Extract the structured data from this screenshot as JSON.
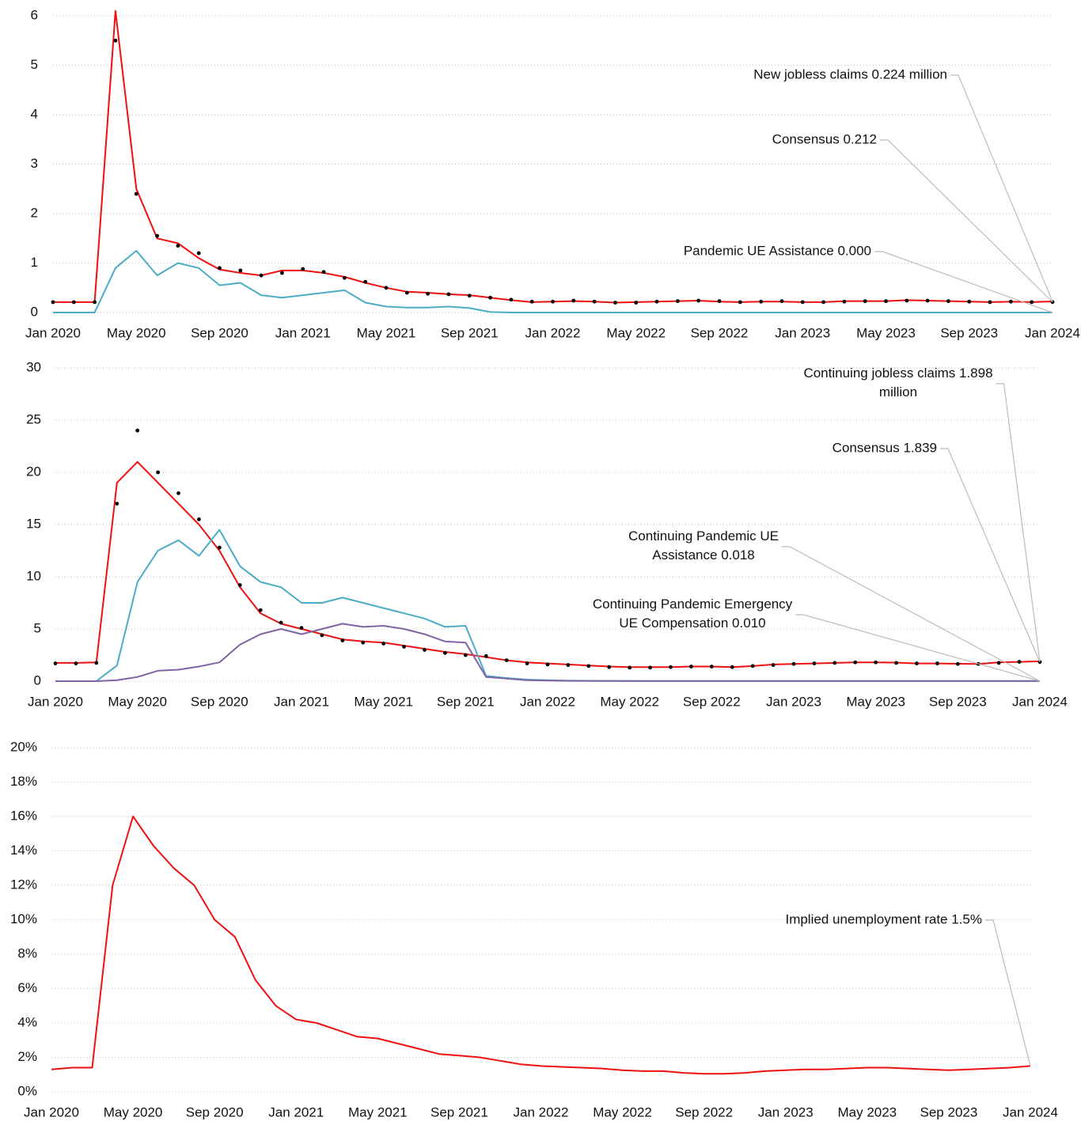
{
  "chart_data": [
    {
      "type": "line",
      "x": [
        "2020-01",
        "2020-02",
        "2020-03",
        "2020-04",
        "2020-05",
        "2020-06",
        "2020-07",
        "2020-08",
        "2020-09",
        "2020-10",
        "2020-11",
        "2020-12",
        "2021-01",
        "2021-02",
        "2021-03",
        "2021-04",
        "2021-05",
        "2021-06",
        "2021-07",
        "2021-08",
        "2021-09",
        "2021-10",
        "2021-11",
        "2021-12",
        "2022-01",
        "2022-02",
        "2022-03",
        "2022-04",
        "2022-05",
        "2022-06",
        "2022-07",
        "2022-08",
        "2022-09",
        "2022-10",
        "2022-11",
        "2022-12",
        "2023-01",
        "2023-02",
        "2023-03",
        "2023-04",
        "2023-05",
        "2023-06",
        "2023-07",
        "2023-08",
        "2023-09",
        "2023-10",
        "2023-11",
        "2023-12",
        "2024-01"
      ],
      "xlim": [
        "2020-01",
        "2024-01"
      ],
      "xticks": [
        {
          "value": "2020-01",
          "label": "Jan 2020"
        },
        {
          "value": "2020-05",
          "label": "May 2020"
        },
        {
          "value": "2020-09",
          "label": "Sep 2020"
        },
        {
          "value": "2021-01",
          "label": "Jan 2021"
        },
        {
          "value": "2021-05",
          "label": "May 2021"
        },
        {
          "value": "2021-09",
          "label": "Sep 2021"
        },
        {
          "value": "2022-01",
          "label": "Jan 2022"
        },
        {
          "value": "2022-05",
          "label": "May 2022"
        },
        {
          "value": "2022-09",
          "label": "Sep 2022"
        },
        {
          "value": "2023-01",
          "label": "Jan 2023"
        },
        {
          "value": "2023-05",
          "label": "May 2023"
        },
        {
          "value": "2023-09",
          "label": "Sep 2023"
        },
        {
          "value": "2024-01",
          "label": "Jan 2024"
        }
      ],
      "ylim": [
        0,
        6
      ],
      "yticks": [
        0,
        1,
        2,
        3,
        4,
        5,
        6
      ],
      "grid": true,
      "series": [
        {
          "name": "New jobless claims 0.224 million",
          "color": "#ee1111",
          "marker": "line",
          "values": [
            0.21,
            0.21,
            0.21,
            6.1,
            2.5,
            1.5,
            1.4,
            1.1,
            0.87,
            0.8,
            0.75,
            0.85,
            0.85,
            0.8,
            0.72,
            0.6,
            0.5,
            0.42,
            0.4,
            0.37,
            0.35,
            0.3,
            0.25,
            0.21,
            0.22,
            0.23,
            0.22,
            0.2,
            0.21,
            0.22,
            0.23,
            0.24,
            0.22,
            0.21,
            0.22,
            0.22,
            0.21,
            0.21,
            0.23,
            0.23,
            0.23,
            0.25,
            0.24,
            0.23,
            0.22,
            0.21,
            0.22,
            0.21,
            0.224
          ]
        },
        {
          "name": "Consensus 0.212",
          "color": "#000000",
          "marker": "dot",
          "values": [
            0.21,
            0.21,
            0.21,
            5.5,
            2.4,
            1.55,
            1.35,
            1.2,
            0.9,
            0.85,
            0.75,
            0.8,
            0.88,
            0.82,
            0.7,
            0.62,
            0.5,
            0.4,
            0.38,
            0.37,
            0.34,
            0.3,
            0.26,
            0.22,
            0.22,
            0.24,
            0.22,
            0.2,
            0.2,
            0.22,
            0.23,
            0.24,
            0.23,
            0.21,
            0.22,
            0.23,
            0.21,
            0.21,
            0.22,
            0.23,
            0.23,
            0.24,
            0.24,
            0.23,
            0.22,
            0.21,
            0.22,
            0.21,
            0.212
          ]
        },
        {
          "name": "Pandemic UE Assistance 0.000",
          "color": "#4bacc6",
          "marker": "line",
          "values": [
            0,
            0,
            0,
            0.9,
            1.25,
            0.75,
            1.0,
            0.9,
            0.55,
            0.6,
            0.35,
            0.3,
            0.35,
            0.4,
            0.45,
            0.2,
            0.12,
            0.1,
            0.1,
            0.12,
            0.09,
            0.01,
            0,
            0,
            0,
            0,
            0,
            0,
            0,
            0,
            0,
            0,
            0,
            0,
            0,
            0,
            0,
            0,
            0,
            0,
            0,
            0,
            0,
            0,
            0,
            0,
            0,
            0,
            0.0
          ]
        }
      ]
    },
    {
      "type": "line",
      "x": [
        "2020-01",
        "2020-02",
        "2020-03",
        "2020-04",
        "2020-05",
        "2020-06",
        "2020-07",
        "2020-08",
        "2020-09",
        "2020-10",
        "2020-11",
        "2020-12",
        "2021-01",
        "2021-02",
        "2021-03",
        "2021-04",
        "2021-05",
        "2021-06",
        "2021-07",
        "2021-08",
        "2021-09",
        "2021-10",
        "2021-11",
        "2021-12",
        "2022-01",
        "2022-02",
        "2022-03",
        "2022-04",
        "2022-05",
        "2022-06",
        "2022-07",
        "2022-08",
        "2022-09",
        "2022-10",
        "2022-11",
        "2022-12",
        "2023-01",
        "2023-02",
        "2023-03",
        "2023-04",
        "2023-05",
        "2023-06",
        "2023-07",
        "2023-08",
        "2023-09",
        "2023-10",
        "2023-11",
        "2023-12",
        "2024-01"
      ],
      "xlim": [
        "2020-01",
        "2024-01"
      ],
      "xticks": [
        {
          "value": "2020-01",
          "label": "Jan 2020"
        },
        {
          "value": "2020-05",
          "label": "May 2020"
        },
        {
          "value": "2020-09",
          "label": "Sep 2020"
        },
        {
          "value": "2021-01",
          "label": "Jan 2021"
        },
        {
          "value": "2021-05",
          "label": "May 2021"
        },
        {
          "value": "2021-09",
          "label": "Sep 2021"
        },
        {
          "value": "2022-01",
          "label": "Jan 2022"
        },
        {
          "value": "2022-05",
          "label": "May 2022"
        },
        {
          "value": "2022-09",
          "label": "Sep 2022"
        },
        {
          "value": "2023-01",
          "label": "Jan 2023"
        },
        {
          "value": "2023-05",
          "label": "May 2023"
        },
        {
          "value": "2023-09",
          "label": "Sep 2023"
        },
        {
          "value": "2024-01",
          "label": "Jan 2024"
        }
      ],
      "ylim": [
        0,
        30
      ],
      "yticks": [
        0,
        5,
        10,
        15,
        20,
        25,
        30
      ],
      "grid": true,
      "series": [
        {
          "name": "Continuing jobless claims 1.898 million",
          "color": "#ee1111",
          "marker": "line",
          "values": [
            1.75,
            1.75,
            1.8,
            19,
            21,
            19,
            17,
            15,
            12.5,
            9,
            6.5,
            5.5,
            5.0,
            4.5,
            4.0,
            3.8,
            3.7,
            3.4,
            3.1,
            2.8,
            2.6,
            2.3,
            2.0,
            1.8,
            1.7,
            1.6,
            1.5,
            1.4,
            1.35,
            1.35,
            1.35,
            1.4,
            1.4,
            1.35,
            1.45,
            1.6,
            1.65,
            1.7,
            1.75,
            1.8,
            1.8,
            1.78,
            1.7,
            1.7,
            1.67,
            1.65,
            1.8,
            1.85,
            1.898
          ]
        },
        {
          "name": "Consensus 1.839",
          "color": "#000000",
          "marker": "dot",
          "values": [
            1.7,
            1.7,
            1.75,
            17,
            24,
            20,
            18,
            15.5,
            12.8,
            9.2,
            6.8,
            5.6,
            5.1,
            4.4,
            3.9,
            3.7,
            3.6,
            3.3,
            3.0,
            2.7,
            2.5,
            2.4,
            2.0,
            1.7,
            1.6,
            1.55,
            1.45,
            1.35,
            1.3,
            1.3,
            1.35,
            1.4,
            1.4,
            1.35,
            1.45,
            1.55,
            1.65,
            1.7,
            1.75,
            1.8,
            1.8,
            1.75,
            1.7,
            1.7,
            1.65,
            1.65,
            1.75,
            1.85,
            1.839
          ]
        },
        {
          "name": "Continuing Pandemic UE Assistance 0.018",
          "color": "#4bacc6",
          "marker": "line",
          "values": [
            0,
            0,
            0,
            1.5,
            9.5,
            12.5,
            13.5,
            12,
            14.5,
            11,
            9.5,
            9,
            7.5,
            7.5,
            8,
            7.5,
            7,
            6.5,
            6,
            5.2,
            5.3,
            0.5,
            0.3,
            0.15,
            0.1,
            0.05,
            0.04,
            0.03,
            0.03,
            0.02,
            0.02,
            0.02,
            0.02,
            0.02,
            0.02,
            0.02,
            0.02,
            0.02,
            0.02,
            0.02,
            0.02,
            0.02,
            0.02,
            0.02,
            0.02,
            0.02,
            0.02,
            0.02,
            0.018
          ]
        },
        {
          "name": "Continuing Pandemic Emergency UE Compensation 0.010",
          "color": "#8064a2",
          "marker": "line",
          "values": [
            0,
            0,
            0,
            0.1,
            0.4,
            1.0,
            1.1,
            1.4,
            1.8,
            3.5,
            4.5,
            5.0,
            4.5,
            5.0,
            5.5,
            5.2,
            5.3,
            5.0,
            4.5,
            3.8,
            3.7,
            0.4,
            0.25,
            0.1,
            0.05,
            0.03,
            0.02,
            0.02,
            0.01,
            0.01,
            0.01,
            0.01,
            0.01,
            0.01,
            0.01,
            0.01,
            0.01,
            0.01,
            0.01,
            0.01,
            0.01,
            0.01,
            0.01,
            0.01,
            0.01,
            0.01,
            0.01,
            0.01,
            0.01
          ]
        }
      ]
    },
    {
      "type": "line",
      "x": [
        "2020-01",
        "2020-02",
        "2020-03",
        "2020-04",
        "2020-05",
        "2020-06",
        "2020-07",
        "2020-08",
        "2020-09",
        "2020-10",
        "2020-11",
        "2020-12",
        "2021-01",
        "2021-02",
        "2021-03",
        "2021-04",
        "2021-05",
        "2021-06",
        "2021-07",
        "2021-08",
        "2021-09",
        "2021-10",
        "2021-11",
        "2021-12",
        "2022-01",
        "2022-02",
        "2022-03",
        "2022-04",
        "2022-05",
        "2022-06",
        "2022-07",
        "2022-08",
        "2022-09",
        "2022-10",
        "2022-11",
        "2022-12",
        "2023-01",
        "2023-02",
        "2023-03",
        "2023-04",
        "2023-05",
        "2023-06",
        "2023-07",
        "2023-08",
        "2023-09",
        "2023-10",
        "2023-11",
        "2023-12",
        "2024-01"
      ],
      "xlim": [
        "2020-01",
        "2024-01"
      ],
      "xticks": [
        {
          "value": "2020-01",
          "label": "Jan 2020"
        },
        {
          "value": "2020-05",
          "label": "May 2020"
        },
        {
          "value": "2020-09",
          "label": "Sep 2020"
        },
        {
          "value": "2021-01",
          "label": "Jan 2021"
        },
        {
          "value": "2021-05",
          "label": "May 2021"
        },
        {
          "value": "2021-09",
          "label": "Sep 2021"
        },
        {
          "value": "2022-01",
          "label": "Jan 2022"
        },
        {
          "value": "2022-05",
          "label": "May 2022"
        },
        {
          "value": "2022-09",
          "label": "Sep 2022"
        },
        {
          "value": "2023-01",
          "label": "Jan 2023"
        },
        {
          "value": "2023-05",
          "label": "May 2023"
        },
        {
          "value": "2023-09",
          "label": "Sep 2023"
        },
        {
          "value": "2024-01",
          "label": "Jan 2024"
        }
      ],
      "ylim": [
        0,
        20
      ],
      "yticks": [
        {
          "value": 0,
          "label": "0%"
        },
        {
          "value": 2,
          "label": "2%"
        },
        {
          "value": 4,
          "label": "4%"
        },
        {
          "value": 6,
          "label": "6%"
        },
        {
          "value": 8,
          "label": "8%"
        },
        {
          "value": 10,
          "label": "10%"
        },
        {
          "value": 12,
          "label": "12%"
        },
        {
          "value": 14,
          "label": "14%"
        },
        {
          "value": 16,
          "label": "16%"
        },
        {
          "value": 18,
          "label": "18%"
        },
        {
          "value": 20,
          "label": "20%"
        }
      ],
      "grid": true,
      "series": [
        {
          "name": "Implied unemployment rate 1.5%",
          "color": "#ee1111",
          "marker": "line",
          "values": [
            1.3,
            1.4,
            1.4,
            12,
            16,
            14.3,
            13,
            12,
            10,
            9,
            6.5,
            5,
            4.2,
            4.0,
            3.6,
            3.2,
            3.1,
            2.8,
            2.5,
            2.2,
            2.1,
            2.0,
            1.8,
            1.6,
            1.5,
            1.45,
            1.4,
            1.35,
            1.25,
            1.2,
            1.2,
            1.1,
            1.05,
            1.05,
            1.1,
            1.2,
            1.25,
            1.3,
            1.3,
            1.35,
            1.4,
            1.4,
            1.35,
            1.3,
            1.25,
            1.3,
            1.35,
            1.4,
            1.5
          ]
        }
      ]
    }
  ]
}
